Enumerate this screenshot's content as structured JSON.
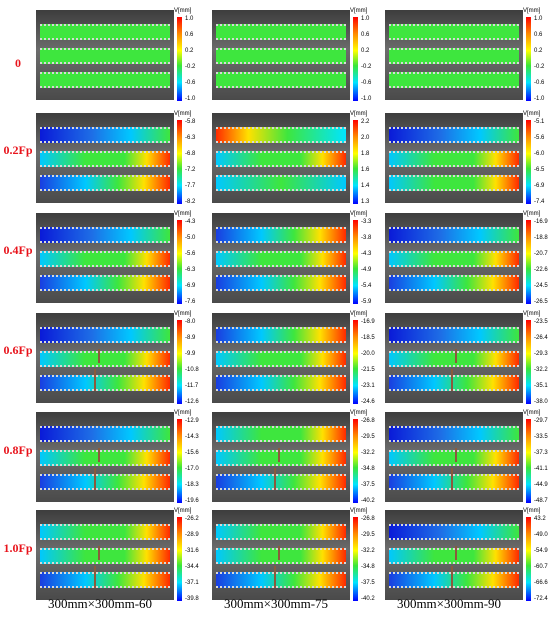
{
  "unit": "V[mm]",
  "columns": [
    "300mm×300mm-60",
    "300mm×300mm-75",
    "300mm×300mm-90"
  ],
  "rows": [
    {
      "label": "0",
      "cells": [
        {
          "ticks": [
            "1.0",
            "0.6",
            "0.2",
            "-0.2",
            "-0.6",
            "-1.0"
          ]
        },
        {
          "ticks": [
            "1.0",
            "0.6",
            "0.2",
            "-0.2",
            "-0.6",
            "-1.0"
          ]
        },
        {
          "ticks": [
            "1.0",
            "0.6",
            "0.2",
            "-0.2",
            "-0.6",
            "-1.0"
          ]
        }
      ]
    },
    {
      "label": "0.2Fp",
      "cells": [
        {
          "ticks": [
            "-5.8",
            "-6.3",
            "-6.8",
            "-7.2",
            "-7.7",
            "-8.2"
          ]
        },
        {
          "ticks": [
            "2.2",
            "2.0",
            "1.8",
            "1.6",
            "1.4",
            "1.3"
          ]
        },
        {
          "ticks": [
            "-5.1",
            "-5.6",
            "-6.0",
            "-6.5",
            "-6.9",
            "-7.4"
          ]
        }
      ]
    },
    {
      "label": "0.4Fp",
      "cells": [
        {
          "ticks": [
            "-4.3",
            "-5.0",
            "-5.6",
            "-6.3",
            "-6.9",
            "-7.6"
          ]
        },
        {
          "ticks": [
            "-3.3",
            "-3.8",
            "-4.3",
            "-4.9",
            "-5.4",
            "-5.9"
          ]
        },
        {
          "ticks": [
            "-16.9",
            "-18.8",
            "-20.7",
            "-22.6",
            "-24.5",
            "-26.5"
          ]
        }
      ]
    },
    {
      "label": "0.6Fp",
      "cells": [
        {
          "ticks": [
            "-8.0",
            "-8.9",
            "-9.9",
            "-10.8",
            "-11.7",
            "-12.6"
          ]
        },
        {
          "ticks": [
            "-16.9",
            "-18.5",
            "-20.0",
            "-21.5",
            "-23.1",
            "-24.6"
          ]
        },
        {
          "ticks": [
            "-23.5",
            "-26.4",
            "-29.3",
            "-32.2",
            "-35.1",
            "-38.0"
          ]
        }
      ]
    },
    {
      "label": "0.8Fp",
      "cells": [
        {
          "ticks": [
            "-12.9",
            "-14.3",
            "-15.6",
            "-17.0",
            "-18.3",
            "-19.6"
          ]
        },
        {
          "ticks": [
            "-26.8",
            "-29.5",
            "-32.2",
            "-34.8",
            "-37.5",
            "-40.2"
          ]
        },
        {
          "ticks": [
            "-29.7",
            "-33.5",
            "-37.3",
            "-41.1",
            "-44.9",
            "-48.7"
          ]
        }
      ]
    },
    {
      "label": "1.0Fp",
      "cells": [
        {
          "ticks": [
            "-26.2",
            "-28.9",
            "-31.6",
            "-34.4",
            "-37.1",
            "-39.8"
          ]
        },
        {
          "ticks": [
            "-26.8",
            "-29.5",
            "-32.2",
            "-34.8",
            "-37.5",
            "-40.2"
          ]
        },
        {
          "ticks": [
            "43.2",
            "-49.0",
            "-54.9",
            "-60.7",
            "-66.6",
            "-72.4"
          ]
        }
      ]
    }
  ],
  "colors": {
    "label_red": "#e8141c"
  }
}
